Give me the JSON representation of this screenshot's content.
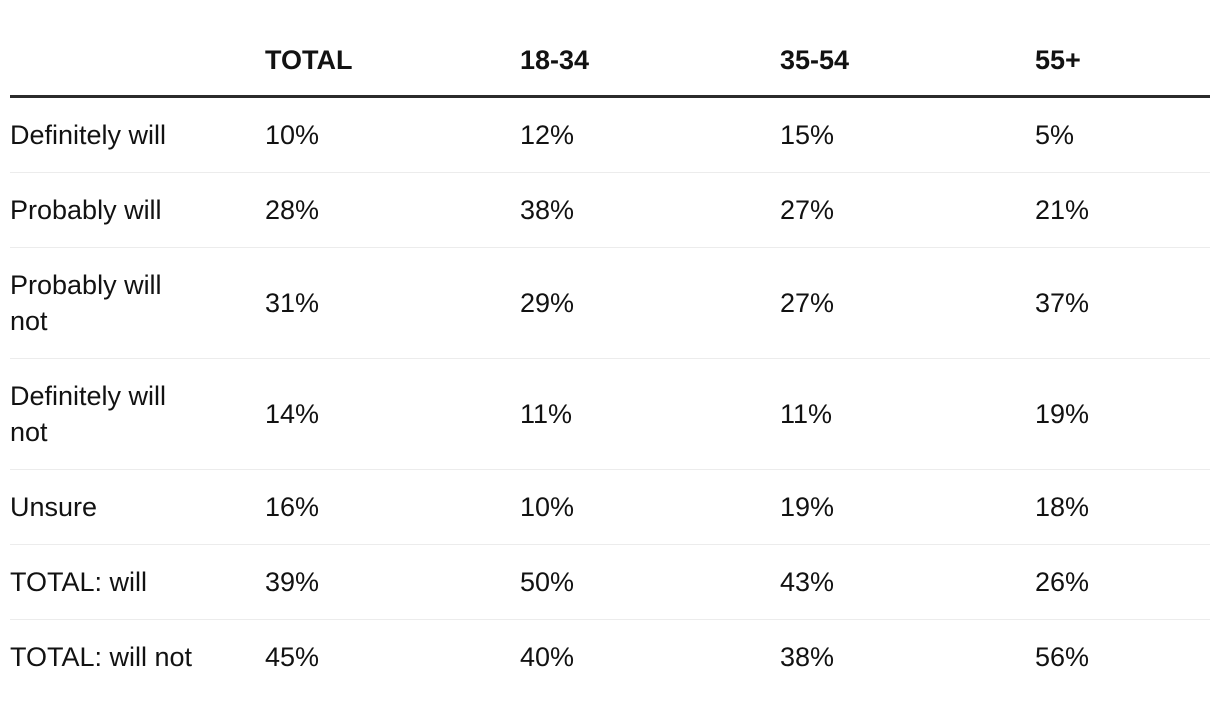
{
  "table": {
    "columns": [
      "",
      "TOTAL",
      "18-34",
      "35-54",
      "55+"
    ],
    "rows": [
      {
        "label": "Definitely will",
        "values": [
          "10%",
          "12%",
          "15%",
          "5%"
        ]
      },
      {
        "label": "Probably will",
        "values": [
          "28%",
          "38%",
          "27%",
          "21%"
        ]
      },
      {
        "label": "Probably will not",
        "values": [
          "31%",
          "29%",
          "27%",
          "37%"
        ]
      },
      {
        "label": "Definitely will not",
        "values": [
          "14%",
          "11%",
          "11%",
          "19%"
        ]
      },
      {
        "label": "Unsure",
        "values": [
          "16%",
          "10%",
          "19%",
          "18%"
        ]
      },
      {
        "label": "TOTAL: will",
        "values": [
          "39%",
          "50%",
          "43%",
          "26%"
        ]
      },
      {
        "label": "TOTAL: will not",
        "values": [
          "45%",
          "40%",
          "38%",
          "56%"
        ]
      }
    ]
  },
  "chart_data": {
    "type": "table",
    "columns": [
      "TOTAL",
      "18-34",
      "35-54",
      "55+"
    ],
    "row_categories": [
      "Definitely will",
      "Probably will",
      "Probably will not",
      "Definitely will not",
      "Unsure",
      "TOTAL: will",
      "TOTAL: will not"
    ],
    "values_percent": [
      [
        10,
        12,
        15,
        5
      ],
      [
        28,
        38,
        27,
        21
      ],
      [
        31,
        29,
        27,
        37
      ],
      [
        14,
        11,
        11,
        19
      ],
      [
        16,
        10,
        19,
        18
      ],
      [
        39,
        50,
        43,
        26
      ],
      [
        45,
        40,
        38,
        56
      ]
    ],
    "unit": "%"
  },
  "colors": {
    "text": "#121212",
    "header_rule": "#2b2b2b",
    "row_separator": "#ececec",
    "background": "#ffffff"
  }
}
